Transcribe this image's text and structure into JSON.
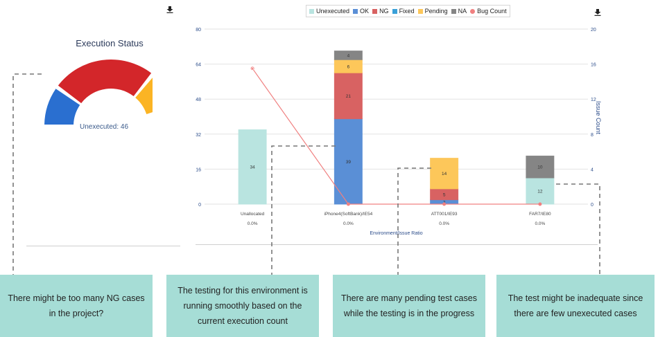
{
  "gauge": {
    "title": "Execution Status",
    "subtitle": "Unexecuted: 46",
    "segments": [
      {
        "name": "OK",
        "fraction": 0.22,
        "color": "#2a6fd0"
      },
      {
        "name": "NG",
        "fraction": 0.58,
        "color": "#d3262a"
      },
      {
        "name": "Pending",
        "fraction": 0.2,
        "color": "#fbb424"
      }
    ]
  },
  "chart_data": {
    "type": "bar",
    "stacked": true,
    "categories": [
      "Unallocated",
      "iPhone4(SoftBank)/IE54",
      "ATT001/IE93",
      "FAR7/IE80"
    ],
    "ratios": [
      "0.0%",
      "0.0%",
      "0.0%",
      "0.0%"
    ],
    "xlabel": "Environment/Issue Ratio",
    "y2label": "Issue Count",
    "ylim": [
      0,
      80
    ],
    "yticks": [
      "0",
      "16",
      "32",
      "48",
      "64",
      "80"
    ],
    "y2lim": [
      0,
      20
    ],
    "y2ticks": [
      "0",
      "4",
      "8",
      "12",
      "16",
      "20"
    ],
    "grid": true,
    "legend_position": "top",
    "series": [
      {
        "name": "Unexecuted",
        "color": "#b9e4e0",
        "values": [
          34,
          0,
          0,
          12
        ]
      },
      {
        "name": "OK",
        "color": "#5a8fd6",
        "values": [
          0,
          39,
          2,
          0
        ]
      },
      {
        "name": "NG",
        "color": "#d86262",
        "values": [
          0,
          21,
          5,
          0
        ]
      },
      {
        "name": "Fixed",
        "color": "#3aa0d8",
        "values": [
          0,
          0,
          0,
          0
        ]
      },
      {
        "name": "Pending",
        "color": "#fdc75a",
        "values": [
          0,
          6,
          14,
          0
        ]
      },
      {
        "name": "NA",
        "color": "#858585",
        "values": [
          0,
          4,
          0,
          10
        ]
      }
    ],
    "line": {
      "name": "Bug Count",
      "color": "#f08080",
      "values": [
        15.5,
        0,
        0,
        0
      ],
      "axis": "right"
    }
  },
  "callouts": [
    {
      "text": "There might be too many NG cases in the project?"
    },
    {
      "text": "The testing for this environment is running smoothly based on the current execution count"
    },
    {
      "text": "There are many pending test cases while the testing is in the progress"
    },
    {
      "text": "The test might be inadequate since there are few unexecuted cases"
    }
  ]
}
